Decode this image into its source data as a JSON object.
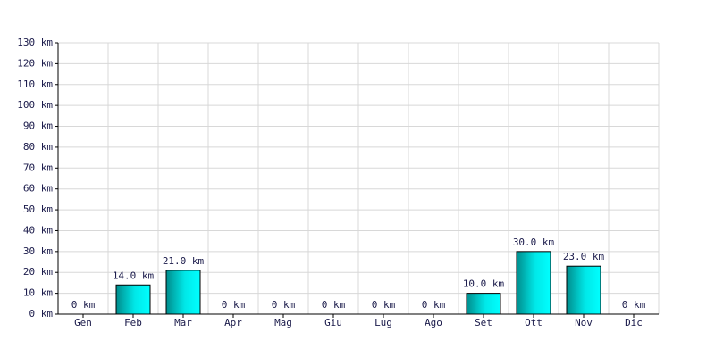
{
  "chart_data": {
    "type": "bar",
    "categories": [
      "Gen",
      "Feb",
      "Mar",
      "Apr",
      "Mag",
      "Giu",
      "Lug",
      "Ago",
      "Set",
      "Ott",
      "Nov",
      "Dic"
    ],
    "values": [
      0,
      14,
      21,
      0,
      0,
      0,
      0,
      0,
      10,
      30,
      23,
      0
    ],
    "value_labels": [
      "0 km",
      "14.0 km",
      "21.0 km",
      "0 km",
      "0 km",
      "0 km",
      "0 km",
      "0 km",
      "10.0 km",
      "30.0 km",
      "23.0 km",
      "0 km"
    ],
    "color": "#00d0d0",
    "ylim": [
      0,
      130
    ],
    "yticks": [
      {
        "value": 0,
        "label": "0 km"
      },
      {
        "value": 10,
        "label": "10 km"
      },
      {
        "value": 20,
        "label": "20 km"
      },
      {
        "value": 30,
        "label": "30 km"
      },
      {
        "value": 40,
        "label": "40 km"
      },
      {
        "value": 50,
        "label": "50 km"
      },
      {
        "value": 60,
        "label": "60 km"
      },
      {
        "value": 70,
        "label": "70 km"
      },
      {
        "value": 80,
        "label": "80 km"
      },
      {
        "value": 90,
        "label": "90 km"
      },
      {
        "value": 100,
        "label": "100 km"
      },
      {
        "value": 110,
        "label": "110 km"
      },
      {
        "value": 120,
        "label": "120 km"
      },
      {
        "value": 130,
        "label": "130 km"
      }
    ],
    "grid": true
  }
}
